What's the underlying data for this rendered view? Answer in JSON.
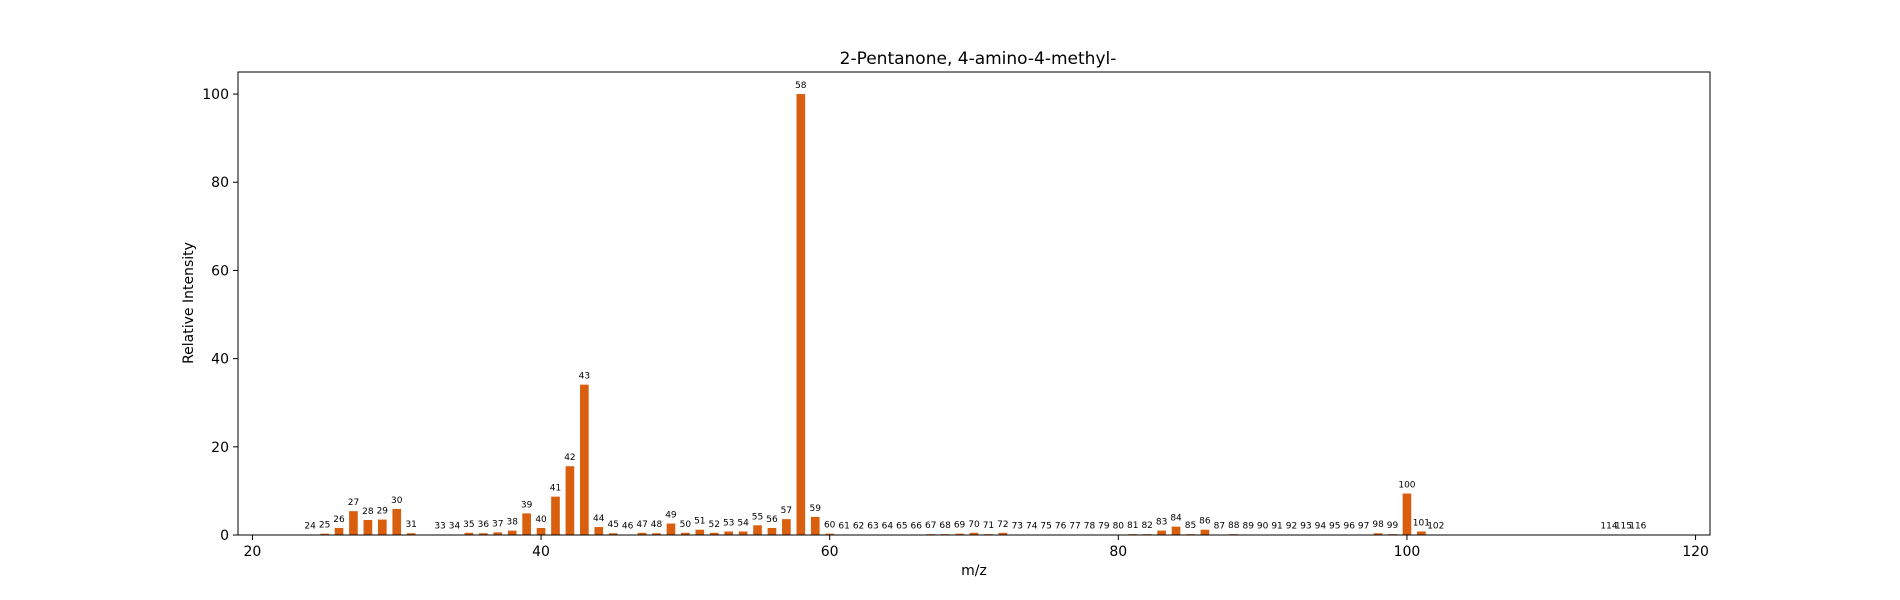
{
  "chart_data": {
    "type": "bar",
    "title": "2-Pentanone, 4-amino-4-methyl-",
    "xlabel": "m/z",
    "ylabel": "Relative Intensity",
    "xlim": [
      19,
      121
    ],
    "ylim": [
      0,
      105
    ],
    "xticks": [
      20,
      40,
      60,
      80,
      100,
      120
    ],
    "yticks": [
      0,
      20,
      40,
      60,
      80,
      100
    ],
    "grid": false,
    "bar_color": "#d95f0e",
    "x": [
      24,
      25,
      26,
      27,
      28,
      29,
      30,
      31,
      33,
      34,
      35,
      36,
      37,
      38,
      39,
      40,
      41,
      42,
      43,
      44,
      45,
      46,
      47,
      48,
      49,
      50,
      51,
      52,
      53,
      54,
      55,
      56,
      57,
      58,
      59,
      60,
      61,
      62,
      63,
      64,
      65,
      66,
      67,
      68,
      69,
      70,
      71,
      72,
      73,
      74,
      75,
      76,
      77,
      78,
      79,
      80,
      81,
      82,
      83,
      84,
      85,
      86,
      87,
      88,
      89,
      90,
      91,
      92,
      93,
      94,
      95,
      96,
      97,
      98,
      99,
      100,
      101,
      102,
      114,
      115,
      116
    ],
    "values": [
      0.1,
      0.3,
      1.6,
      5.4,
      3.4,
      3.5,
      5.9,
      0.4,
      0.1,
      0.1,
      0.5,
      0.4,
      0.6,
      1.0,
      4.9,
      1.6,
      8.7,
      15.6,
      34.1,
      1.8,
      0.4,
      0.1,
      0.5,
      0.4,
      2.6,
      0.5,
      1.2,
      0.5,
      0.8,
      0.8,
      2.2,
      1.6,
      3.6,
      100.0,
      4.1,
      0.3,
      0.1,
      0.1,
      0.1,
      0.1,
      0.1,
      0.1,
      0.2,
      0.2,
      0.3,
      0.5,
      0.2,
      0.5,
      0.1,
      0.1,
      0.1,
      0.1,
      0.1,
      0.1,
      0.1,
      0.1,
      0.2,
      0.2,
      1.0,
      1.9,
      0.2,
      1.2,
      0.1,
      0.2,
      0.1,
      0.1,
      0.1,
      0.1,
      0.1,
      0.1,
      0.1,
      0.1,
      0.1,
      0.4,
      0.2,
      9.4,
      0.8,
      0.1,
      0.1,
      0.1,
      0.1
    ]
  }
}
